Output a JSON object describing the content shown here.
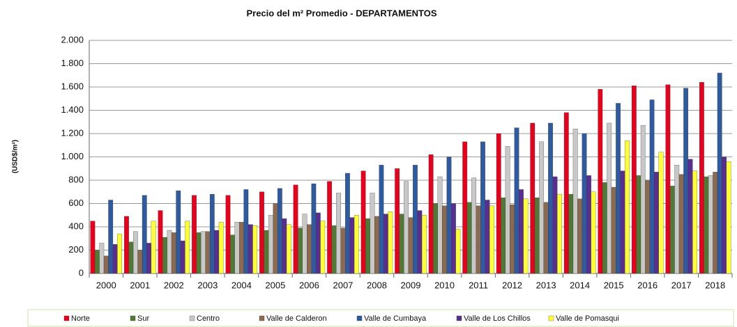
{
  "chart_data": {
    "type": "bar",
    "title": "Precio del m² Promedio - DEPARTAMENTOS",
    "y_label": "(USD$/m²)",
    "categories": [
      "2000",
      "2001",
      "2002",
      "2003",
      "2004",
      "2005",
      "2006",
      "2007",
      "2008",
      "2009",
      "2010",
      "2011",
      "2012",
      "2013",
      "2014",
      "2015",
      "2016",
      "2017",
      "2018"
    ],
    "series": [
      {
        "name": "Norte",
        "color": "#e8001c",
        "values": [
          450,
          490,
          540,
          670,
          670,
          700,
          760,
          790,
          880,
          900,
          1020,
          1130,
          1200,
          1290,
          1380,
          1580,
          1610,
          1620,
          1640
        ]
      },
      {
        "name": "Sur",
        "color": "#4e7a35",
        "values": [
          200,
          270,
          310,
          350,
          330,
          370,
          390,
          410,
          470,
          510,
          600,
          610,
          650,
          650,
          680,
          780,
          840,
          750,
          830
        ]
      },
      {
        "name": "Centro",
        "color": "#c8c8c8",
        "values": [
          260,
          360,
          370,
          360,
          440,
          500,
          510,
          690,
          690,
          790,
          830,
          820,
          1090,
          1130,
          1240,
          1290,
          1270,
          930,
          840
        ]
      },
      {
        "name": "Valle de Calderon",
        "color": "#8b6a4f",
        "values": [
          150,
          200,
          350,
          360,
          440,
          600,
          420,
          390,
          490,
          480,
          580,
          580,
          590,
          610,
          640,
          740,
          800,
          850,
          870
        ]
      },
      {
        "name": "Valle de Cumbaya",
        "color": "#2e5aa0",
        "values": [
          630,
          670,
          710,
          680,
          720,
          730,
          770,
          860,
          930,
          930,
          1000,
          1130,
          1250,
          1290,
          1200,
          1460,
          1490,
          1590,
          1720
        ]
      },
      {
        "name": "Valle de Los Chillos",
        "color": "#5a2d91",
        "values": [
          250,
          260,
          280,
          370,
          420,
          470,
          520,
          480,
          510,
          540,
          600,
          630,
          720,
          830,
          840,
          880,
          870,
          980,
          1000
        ]
      },
      {
        "name": "Valle de Pomasqui",
        "color": "#ffff33",
        "values": [
          340,
          450,
          450,
          440,
          410,
          420,
          450,
          500,
          530,
          500,
          380,
          580,
          640,
          680,
          700,
          1140,
          1040,
          880,
          960
        ]
      }
    ],
    "ylim": [
      0,
      2000
    ],
    "yticks": [
      0,
      200,
      400,
      600,
      800,
      {
        "value": 1000,
        "label": "1.000"
      },
      {
        "value": 1200,
        "label": "1.200"
      },
      {
        "value": 1400,
        "label": "1.400"
      },
      {
        "value": 1600,
        "label": "1.600"
      },
      {
        "value": 1800,
        "label": "1.800"
      },
      {
        "value": 2000,
        "label": "2.000"
      }
    ],
    "grid": true,
    "legend": "bottom"
  }
}
